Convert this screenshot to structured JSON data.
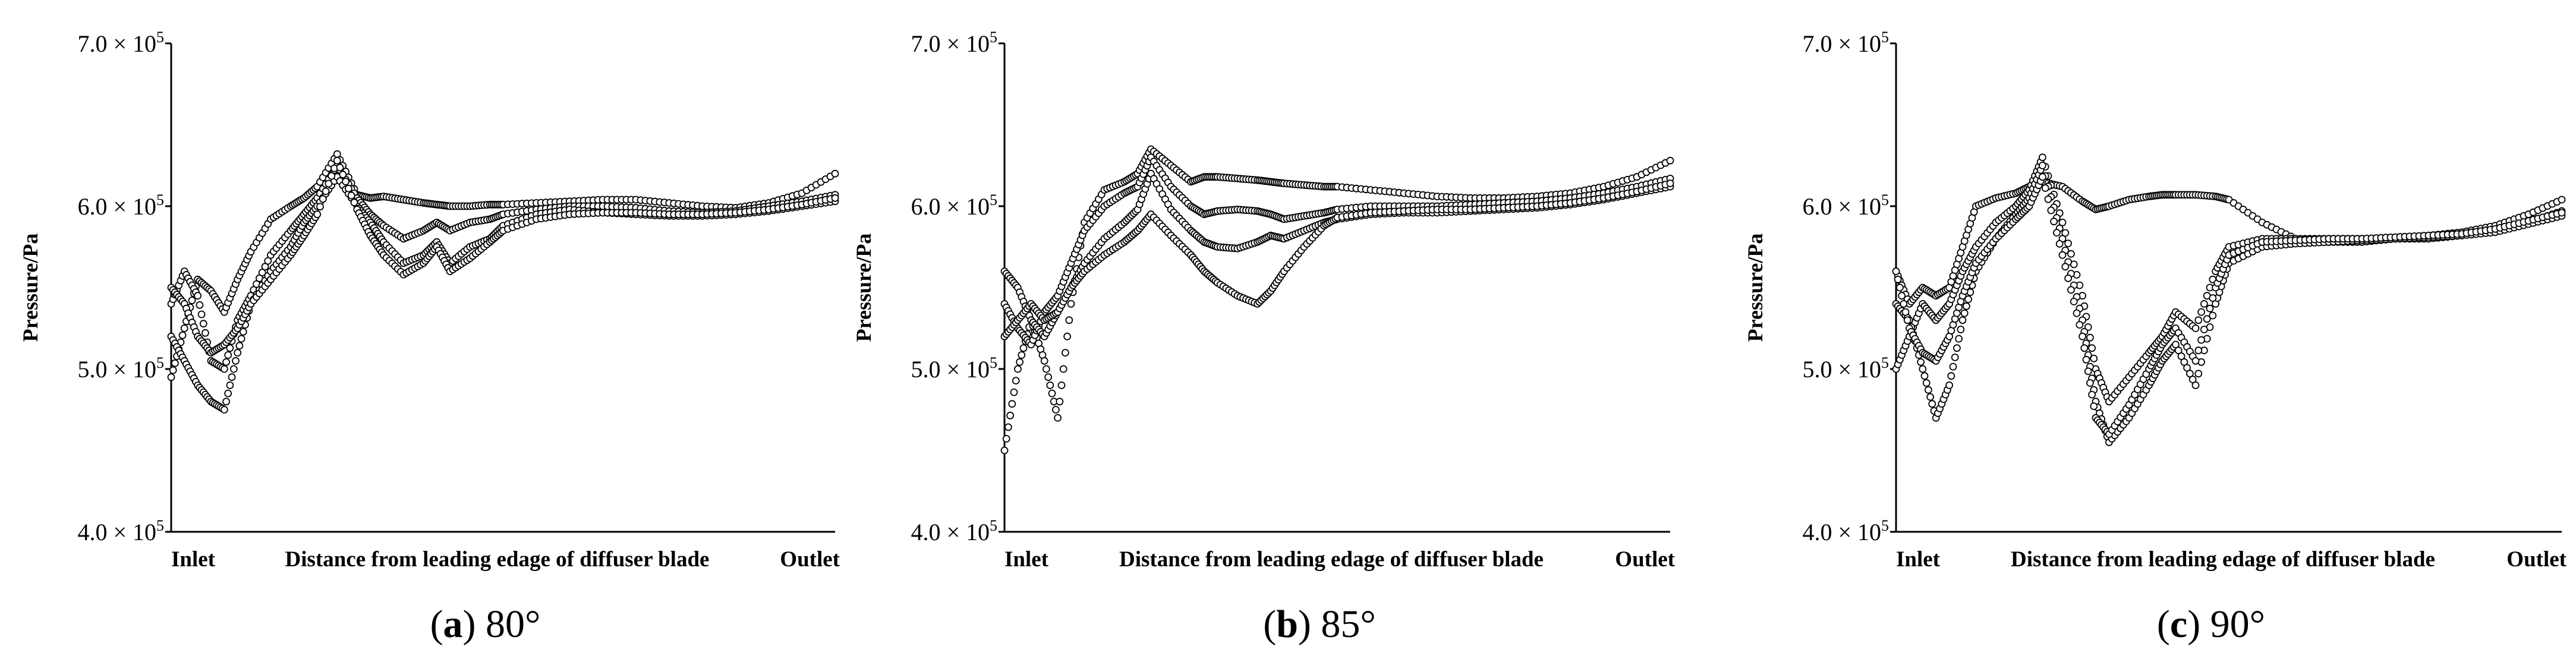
{
  "chart_data": [
    {
      "type": "scatter",
      "caption_letter": "a",
      "caption_angle": "80°",
      "ylabel": "Pressure/Pa",
      "ylim": [
        400000,
        700000
      ],
      "yticks": [
        {
          "mantissa": "4.0",
          "exp": "5"
        },
        {
          "mantissa": "5.0",
          "exp": "5"
        },
        {
          "mantissa": "6.0",
          "exp": "5"
        },
        {
          "mantissa": "7.0",
          "exp": "5"
        }
      ],
      "xlabel_left": "Inlet",
      "xlabel_center": "Distance from leading edage of diffuser blade",
      "xlabel_right": "Outlet",
      "xlim": [
        0,
        1
      ],
      "marker": "open-circle",
      "series": [
        {
          "x": [
            0,
            0.02,
            0.04,
            0.06,
            0.08,
            0.1,
            0.12,
            0.15,
            0.18,
            0.2,
            0.22,
            0.25,
            0.28,
            0.3,
            0.32,
            0.35,
            0.38,
            0.4,
            0.42,
            0.45,
            0.48,
            0.5,
            0.55,
            0.6,
            0.65,
            0.7,
            0.75,
            0.8,
            0.85,
            0.9,
            0.95,
            1.0
          ],
          "y": [
            495000,
            525000,
            555000,
            548000,
            535000,
            555000,
            572000,
            592000,
            600000,
            605000,
            612000,
            632000,
            607000,
            605000,
            606000,
            604000,
            602000,
            601000,
            600000,
            600000,
            601000,
            601000,
            602000,
            603000,
            604000,
            604000,
            602000,
            600000,
            599000,
            602000,
            608000,
            620000
          ]
        },
        {
          "x": [
            0,
            0.02,
            0.04,
            0.06,
            0.08,
            0.1,
            0.12,
            0.15,
            0.18,
            0.2,
            0.22,
            0.25,
            0.28,
            0.3,
            0.32,
            0.35,
            0.38,
            0.4,
            0.42,
            0.45,
            0.48,
            0.5,
            0.55,
            0.6,
            0.65,
            0.7,
            0.75,
            0.8,
            0.85,
            0.9,
            0.95,
            1.0
          ],
          "y": [
            540000,
            560000,
            545000,
            505000,
            500000,
            530000,
            545000,
            570000,
            585000,
            595000,
            605000,
            625000,
            605000,
            595000,
            588000,
            580000,
            585000,
            590000,
            585000,
            590000,
            592000,
            595000,
            598000,
            600000,
            600000,
            599000,
            597000,
            596000,
            597000,
            600000,
            603000,
            607000
          ]
        },
        {
          "x": [
            0,
            0.02,
            0.04,
            0.06,
            0.08,
            0.1,
            0.12,
            0.15,
            0.18,
            0.2,
            0.22,
            0.25,
            0.28,
            0.3,
            0.32,
            0.35,
            0.38,
            0.4,
            0.42,
            0.45,
            0.48,
            0.5,
            0.55,
            0.6,
            0.65,
            0.7,
            0.75,
            0.8,
            0.85,
            0.9,
            0.95,
            1.0
          ],
          "y": [
            520000,
            505000,
            490000,
            480000,
            475000,
            510000,
            540000,
            560000,
            575000,
            590000,
            600000,
            618000,
            600000,
            590000,
            578000,
            565000,
            570000,
            578000,
            565000,
            575000,
            580000,
            588000,
            595000,
            598000,
            596000,
            595000,
            594000,
            594000,
            595000,
            597000,
            600000,
            603000
          ]
        },
        {
          "x": [
            0,
            0.02,
            0.04,
            0.06,
            0.08,
            0.1,
            0.12,
            0.15,
            0.18,
            0.2,
            0.22,
            0.25,
            0.28,
            0.3,
            0.32,
            0.35,
            0.38,
            0.4,
            0.42,
            0.45,
            0.48,
            0.5,
            0.55,
            0.6,
            0.65,
            0.7,
            0.75,
            0.8,
            0.85,
            0.9,
            0.95,
            1.0
          ],
          "y": [
            550000,
            540000,
            520000,
            510000,
            515000,
            525000,
            540000,
            555000,
            570000,
            582000,
            595000,
            628000,
            598000,
            582000,
            570000,
            558000,
            565000,
            575000,
            560000,
            568000,
            578000,
            585000,
            592000,
            595000,
            596000,
            596000,
            595000,
            595000,
            596000,
            598000,
            601000,
            605000
          ]
        }
      ]
    },
    {
      "type": "scatter",
      "caption_letter": "b",
      "caption_angle": "85°",
      "ylabel": "Pressure/Pa",
      "ylim": [
        400000,
        700000
      ],
      "yticks": [
        {
          "mantissa": "4.0",
          "exp": "5"
        },
        {
          "mantissa": "5.0",
          "exp": "5"
        },
        {
          "mantissa": "6.0",
          "exp": "5"
        },
        {
          "mantissa": "7.0",
          "exp": "5"
        }
      ],
      "xlabel_left": "Inlet",
      "xlabel_center": "Distance from leading edage of diffuser blade",
      "xlabel_right": "Outlet",
      "xlim": [
        0,
        1
      ],
      "marker": "open-circle",
      "series": [
        {
          "x": [
            0,
            0.02,
            0.04,
            0.06,
            0.08,
            0.1,
            0.12,
            0.15,
            0.18,
            0.2,
            0.22,
            0.25,
            0.28,
            0.3,
            0.32,
            0.35,
            0.38,
            0.4,
            0.42,
            0.45,
            0.48,
            0.5,
            0.55,
            0.6,
            0.65,
            0.7,
            0.75,
            0.8,
            0.85,
            0.9,
            0.95,
            1.0
          ],
          "y": [
            450000,
            500000,
            530000,
            505000,
            470000,
            540000,
            590000,
            610000,
            615000,
            620000,
            635000,
            625000,
            615000,
            618000,
            618000,
            617000,
            616000,
            615000,
            614000,
            613000,
            612000,
            612000,
            610000,
            608000,
            606000,
            605000,
            605000,
            606000,
            608000,
            612000,
            618000,
            628000
          ]
        },
        {
          "x": [
            0,
            0.02,
            0.04,
            0.06,
            0.08,
            0.1,
            0.12,
            0.15,
            0.18,
            0.2,
            0.22,
            0.25,
            0.28,
            0.3,
            0.32,
            0.35,
            0.38,
            0.4,
            0.42,
            0.45,
            0.48,
            0.5,
            0.55,
            0.6,
            0.65,
            0.7,
            0.75,
            0.8,
            0.85,
            0.9,
            0.95,
            1.0
          ],
          "y": [
            540000,
            525000,
            515000,
            535000,
            545000,
            565000,
            585000,
            600000,
            608000,
            612000,
            630000,
            612000,
            600000,
            595000,
            597000,
            598000,
            597000,
            595000,
            592000,
            594000,
            596000,
            598000,
            600000,
            600000,
            600000,
            601000,
            602000,
            603000,
            605000,
            608000,
            612000,
            617000
          ]
        },
        {
          "x": [
            0,
            0.02,
            0.04,
            0.06,
            0.08,
            0.1,
            0.12,
            0.15,
            0.18,
            0.2,
            0.22,
            0.25,
            0.28,
            0.3,
            0.32,
            0.35,
            0.38,
            0.4,
            0.42,
            0.45,
            0.48,
            0.5,
            0.55,
            0.6,
            0.65,
            0.7,
            0.75,
            0.8,
            0.85,
            0.9,
            0.95,
            1.0
          ],
          "y": [
            560000,
            550000,
            530000,
            520000,
            535000,
            550000,
            565000,
            580000,
            590000,
            598000,
            620000,
            598000,
            585000,
            578000,
            575000,
            574000,
            578000,
            582000,
            580000,
            585000,
            590000,
            592000,
            595000,
            596000,
            596000,
            597000,
            598000,
            599000,
            601000,
            604000,
            608000,
            612000
          ]
        },
        {
          "x": [
            0,
            0.02,
            0.04,
            0.06,
            0.08,
            0.1,
            0.12,
            0.15,
            0.18,
            0.2,
            0.22,
            0.25,
            0.28,
            0.3,
            0.32,
            0.35,
            0.38,
            0.4,
            0.42,
            0.45,
            0.48,
            0.5,
            0.55,
            0.6,
            0.65,
            0.7,
            0.75,
            0.8,
            0.85,
            0.9,
            0.95,
            1.0
          ],
          "y": [
            520000,
            530000,
            540000,
            530000,
            535000,
            550000,
            560000,
            570000,
            578000,
            585000,
            595000,
            582000,
            570000,
            560000,
            553000,
            545000,
            540000,
            548000,
            560000,
            575000,
            588000,
            593000,
            596000,
            597000,
            598000,
            598000,
            599000,
            600000,
            602000,
            605000,
            609000,
            614000
          ]
        }
      ]
    },
    {
      "type": "scatter",
      "caption_letter": "c",
      "caption_angle": "90°",
      "ylabel": "Pressure/Pa",
      "ylim": [
        400000,
        700000
      ],
      "yticks": [
        {
          "mantissa": "4.0",
          "exp": "5"
        },
        {
          "mantissa": "5.0",
          "exp": "5"
        },
        {
          "mantissa": "6.0",
          "exp": "5"
        },
        {
          "mantissa": "7.0",
          "exp": "5"
        }
      ],
      "xlabel_left": "Inlet",
      "xlabel_center": "Distance from leading edage of diffuser blade",
      "xlabel_right": "Outlet",
      "xlim": [
        0,
        1
      ],
      "marker": "open-circle",
      "series": [
        {
          "x": [
            0,
            0.02,
            0.04,
            0.06,
            0.08,
            0.1,
            0.12,
            0.15,
            0.18,
            0.2,
            0.22,
            0.25,
            0.28,
            0.3,
            0.32,
            0.35,
            0.38,
            0.4,
            0.42,
            0.45,
            0.48,
            0.5,
            0.55,
            0.6,
            0.65,
            0.7,
            0.75,
            0.8,
            0.85,
            0.9,
            0.95,
            1.0
          ],
          "y": [
            560000,
            540000,
            550000,
            545000,
            550000,
            575000,
            600000,
            605000,
            608000,
            612000,
            615000,
            612000,
            603000,
            598000,
            600000,
            604000,
            606000,
            607000,
            607000,
            607000,
            606000,
            604000,
            590000,
            580000,
            578000,
            578000,
            580000,
            582000,
            584000,
            588000,
            595000,
            604000
          ]
        },
        {
          "x": [
            0,
            0.02,
            0.04,
            0.06,
            0.08,
            0.1,
            0.12,
            0.15,
            0.18,
            0.2,
            0.22,
            0.25,
            0.28,
            0.3,
            0.32,
            0.35,
            0.38,
            0.4,
            0.42,
            0.45,
            0.48,
            0.5,
            0.55,
            0.6,
            0.65,
            0.7,
            0.75,
            0.8,
            0.85,
            0.9,
            0.95,
            1.0
          ],
          "y": [
            500000,
            520000,
            540000,
            530000,
            540000,
            560000,
            575000,
            590000,
            600000,
            610000,
            630000,
            590000,
            545000,
            500000,
            480000,
            495000,
            510000,
            520000,
            535000,
            525000,
            560000,
            575000,
            580000,
            580000,
            580000,
            580000,
            580000,
            580000,
            582000,
            585000,
            590000,
            597000
          ]
        },
        {
          "x": [
            0,
            0.02,
            0.04,
            0.06,
            0.08,
            0.1,
            0.12,
            0.15,
            0.18,
            0.2,
            0.22,
            0.25,
            0.28,
            0.3,
            0.32,
            0.35,
            0.38,
            0.4,
            0.42,
            0.45,
            0.48,
            0.5,
            0.55,
            0.6,
            0.65,
            0.7,
            0.75,
            0.8,
            0.85,
            0.9,
            0.95,
            1.0
          ],
          "y": [
            540000,
            530000,
            500000,
            470000,
            490000,
            530000,
            560000,
            580000,
            595000,
            605000,
            625000,
            580000,
            530000,
            480000,
            455000,
            470000,
            490000,
            505000,
            515000,
            490000,
            540000,
            565000,
            575000,
            577000,
            578000,
            579000,
            580000,
            581000,
            582000,
            584000,
            589000,
            594000
          ]
        },
        {
          "x": [
            0,
            0.02,
            0.04,
            0.06,
            0.08,
            0.1,
            0.12,
            0.15,
            0.18,
            0.2,
            0.22,
            0.25,
            0.28,
            0.3,
            0.32,
            0.35,
            0.38,
            0.4,
            0.42,
            0.45,
            0.48,
            0.5,
            0.55,
            0.6,
            0.65,
            0.7,
            0.75,
            0.8,
            0.85,
            0.9,
            0.95,
            1.0
          ],
          "y": [
            560000,
            525000,
            510000,
            505000,
            520000,
            545000,
            565000,
            580000,
            592000,
            600000,
            618000,
            570000,
            520000,
            470000,
            460000,
            478000,
            500000,
            515000,
            525000,
            505000,
            550000,
            570000,
            578000,
            579000,
            580000,
            580000,
            581000,
            582000,
            583000,
            586000,
            591000,
            596000
          ]
        }
      ]
    }
  ]
}
